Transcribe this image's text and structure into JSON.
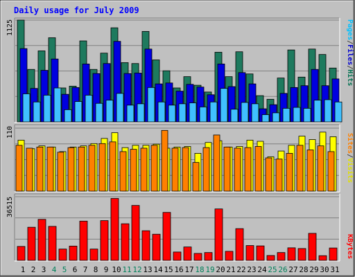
{
  "chart_data": {
    "type": "bar",
    "title": "Daily usage for July 2009",
    "days": [
      "1",
      "2",
      "3",
      "4",
      "5",
      "6",
      "7",
      "8",
      "9",
      "10",
      "11",
      "12",
      "13",
      "14",
      "15",
      "16",
      "17",
      "18",
      "19",
      "20",
      "21",
      "22",
      "23",
      "24",
      "25",
      "26",
      "27",
      "28",
      "29",
      "30",
      "31"
    ],
    "weekend_days": [
      "4",
      "5",
      "11",
      "12",
      "18",
      "19",
      "25",
      "26"
    ],
    "panels": [
      {
        "id": "traffic",
        "y_max_label": "1125",
        "y_max": 1125,
        "legend": [
          {
            "label": "Pages",
            "color": "#00c0ff"
          },
          {
            "label": "/",
            "color": "#444444"
          },
          {
            "label": "Files",
            "color": "#0000d0"
          },
          {
            "label": "/",
            "color": "#444444"
          },
          {
            "label": "Hits",
            "color": "#007050"
          }
        ],
        "series": [
          {
            "name": "Hits",
            "color": "#1e7a5e",
            "values": [
              1125,
              580,
              785,
              930,
              375,
              395,
              895,
              580,
              760,
              1040,
              655,
              645,
              1000,
              685,
              565,
              375,
              500,
              405,
              330,
              770,
              500,
              775,
              530,
              290,
              250,
              485,
              795,
              495,
              805,
              745,
              595
            ]
          },
          {
            "name": "Files",
            "color": "#0000e0",
            "values": [
              810,
              370,
              570,
              695,
              305,
              380,
              640,
              535,
              645,
              890,
              535,
              540,
              805,
              420,
              430,
              340,
              415,
              385,
              300,
              640,
              390,
              545,
              420,
              145,
              190,
              315,
              380,
              400,
              580,
              400,
              475
            ]
          },
          {
            "name": "Pages",
            "color": "#40c0ff",
            "values": [
              310,
              220,
              295,
              375,
              135,
              225,
              295,
              205,
              240,
              315,
              185,
              200,
              380,
              220,
              185,
              200,
              210,
              165,
              220,
              370,
              140,
              215,
              200,
              80,
              100,
              150,
              160,
              150,
              240,
              245,
              220
            ]
          }
        ]
      },
      {
        "id": "visitors",
        "y_max_label": "110",
        "y_max": 110,
        "legend": [
          {
            "label": "Sites",
            "color": "#ff8000"
          },
          {
            "label": "/",
            "color": "#444444"
          },
          {
            "label": "Visits",
            "color": "#e0e000"
          }
        ],
        "series": [
          {
            "name": "Visits",
            "color": "#ffff00",
            "values": [
              89,
              74,
              79,
              77,
              69,
              77,
              79,
              83,
              92,
              102,
              76,
              80,
              80,
              82,
              75,
              77,
              78,
              66,
              85,
              88,
              77,
              78,
              89,
              87,
              60,
              70,
              80,
              96,
              90,
              103,
              95
            ]
          },
          {
            "name": "Sites",
            "color": "#ff8000",
            "values": [
              80,
              75,
              77,
              77,
              68,
              76,
              77,
              80,
              83,
              86,
              69,
              73,
              75,
              80,
              106,
              75,
              76,
              50,
              76,
              98,
              77,
              75,
              76,
              78,
              58,
              56,
              66,
              80,
              72,
              79,
              69
            ]
          }
        ]
      },
      {
        "id": "volume",
        "y_max_label": "36515",
        "y_max": 36515,
        "legend": [
          {
            "label": "KBytes",
            "color": "#ff0000"
          }
        ],
        "series": [
          {
            "name": "KBytes",
            "color": "#ff0000",
            "values": [
              8000,
              19000,
              23500,
              19500,
              6500,
              8200,
              22500,
              6500,
              22800,
              35500,
              21000,
              31500,
              17000,
              15000,
              27500,
              4800,
              7700,
              4000,
              4500,
              29500,
              5200,
              18200,
              8500,
              8300,
              2800,
              4500,
              7200,
              6800,
              15500,
              2700,
              7100
            ]
          }
        ]
      }
    ]
  }
}
